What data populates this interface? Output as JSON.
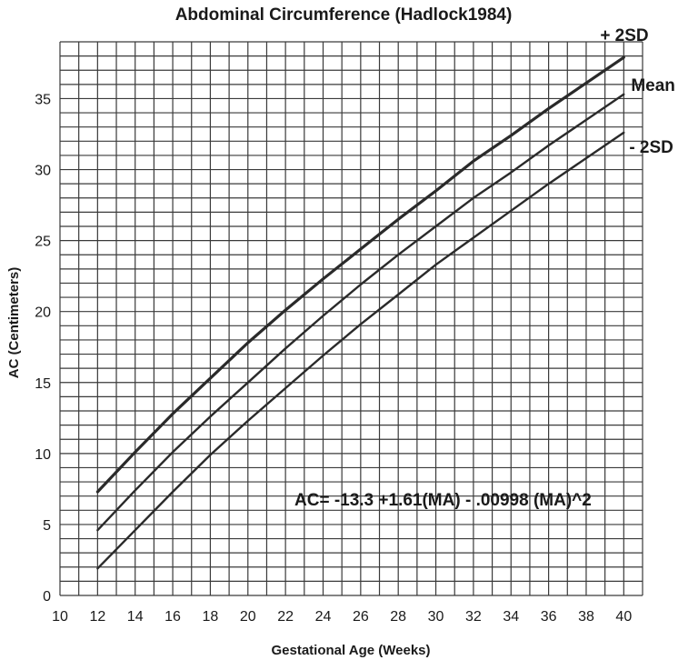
{
  "chart_data": {
    "type": "line",
    "title": "Abdominal Circumference (Hadlock1984)",
    "xlabel": "Gestational Age (Weeks)",
    "ylabel": "AC (Centimeters)",
    "xlim": [
      10,
      41
    ],
    "ylim": [
      0,
      39
    ],
    "x_ticks": [
      10,
      12,
      14,
      16,
      18,
      20,
      22,
      24,
      26,
      28,
      30,
      32,
      34,
      36,
      38,
      40
    ],
    "y_ticks": [
      0,
      5,
      10,
      15,
      20,
      25,
      30,
      35
    ],
    "grid": true,
    "x_grid_step": 1,
    "y_grid_step": 1,
    "x": [
      12,
      14,
      16,
      18,
      20,
      22,
      24,
      26,
      28,
      30,
      32,
      34,
      36,
      38,
      40
    ],
    "series": [
      {
        "name": "+ 2SD",
        "values": [
          7.3,
          10.1,
          12.8,
          15.3,
          17.8,
          20.1,
          22.3,
          24.4,
          26.5,
          28.5,
          30.6,
          32.4,
          34.3,
          36.1,
          37.9
        ]
      },
      {
        "name": "Mean",
        "values": [
          4.6,
          7.4,
          10.1,
          12.6,
          15.0,
          17.4,
          19.7,
          21.9,
          24.0,
          26.0,
          28.0,
          29.8,
          31.7,
          33.5,
          35.3
        ]
      },
      {
        "name": "- 2SD",
        "values": [
          1.9,
          4.6,
          7.3,
          9.9,
          12.3,
          14.6,
          16.9,
          19.1,
          21.2,
          23.3,
          25.2,
          27.1,
          29.0,
          30.8,
          32.6
        ]
      }
    ],
    "annotation": "AC= -13.3 +1.61(MA) - .00998 (MA)^2"
  }
}
